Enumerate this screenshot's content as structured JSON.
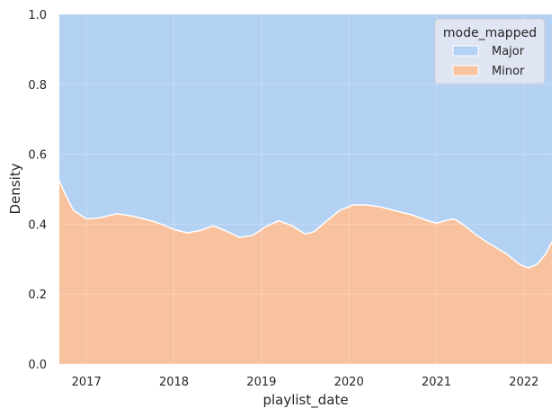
{
  "chart_data": {
    "type": "area",
    "xlabel": "playlist_date",
    "ylabel": "Density",
    "xlim": [
      2016.69,
      2022.32
    ],
    "ylim": [
      0,
      1
    ],
    "x_ticks": [
      2017,
      2018,
      2019,
      2020,
      2021,
      2022
    ],
    "x_tick_labels": [
      "2017",
      "2018",
      "2019",
      "2020",
      "2021",
      "2022"
    ],
    "y_ticks": [
      0,
      0.2,
      0.4,
      0.6,
      0.8,
      1.0
    ],
    "y_tick_labels": [
      "0.0",
      "0.2",
      "0.4",
      "0.6",
      "0.8",
      "1.0"
    ],
    "grid": true,
    "stacked": true,
    "legend": {
      "title": "mode_mapped",
      "position": "top-right",
      "entries": [
        "Major",
        "Minor"
      ]
    },
    "colors": {
      "Major": "#b3d1f3",
      "Minor": "#f8c29f",
      "boundary": "#ffffff",
      "plot_bg": "#eaeaf2"
    },
    "x": [
      2016.69,
      2016.75,
      2016.85,
      2017.0,
      2017.15,
      2017.35,
      2017.55,
      2017.8,
      2018.0,
      2018.15,
      2018.3,
      2018.45,
      2018.6,
      2018.75,
      2018.9,
      2019.05,
      2019.2,
      2019.35,
      2019.5,
      2019.6,
      2019.75,
      2019.9,
      2020.05,
      2020.2,
      2020.35,
      2020.5,
      2020.7,
      2020.9,
      2021.0,
      2021.1,
      2021.2,
      2021.3,
      2021.45,
      2021.6,
      2021.8,
      2021.95,
      2022.05,
      2022.15,
      2022.25,
      2022.32
    ],
    "series": [
      {
        "name": "Minor",
        "values": [
          0.525,
          0.49,
          0.44,
          0.415,
          0.418,
          0.43,
          0.422,
          0.405,
          0.385,
          0.375,
          0.382,
          0.395,
          0.38,
          0.362,
          0.368,
          0.393,
          0.41,
          0.395,
          0.372,
          0.378,
          0.41,
          0.44,
          0.455,
          0.455,
          0.45,
          0.44,
          0.428,
          0.41,
          0.403,
          0.41,
          0.415,
          0.4,
          0.37,
          0.345,
          0.315,
          0.285,
          0.275,
          0.285,
          0.315,
          0.35
        ]
      },
      {
        "name": "Major",
        "values": [
          0.475,
          0.51,
          0.56,
          0.585,
          0.582,
          0.57,
          0.578,
          0.595,
          0.615,
          0.625,
          0.618,
          0.605,
          0.62,
          0.638,
          0.632,
          0.607,
          0.59,
          0.605,
          0.628,
          0.622,
          0.59,
          0.56,
          0.545,
          0.545,
          0.55,
          0.56,
          0.572,
          0.59,
          0.597,
          0.59,
          0.585,
          0.6,
          0.63,
          0.655,
          0.685,
          0.715,
          0.725,
          0.715,
          0.685,
          0.65
        ]
      }
    ]
  }
}
